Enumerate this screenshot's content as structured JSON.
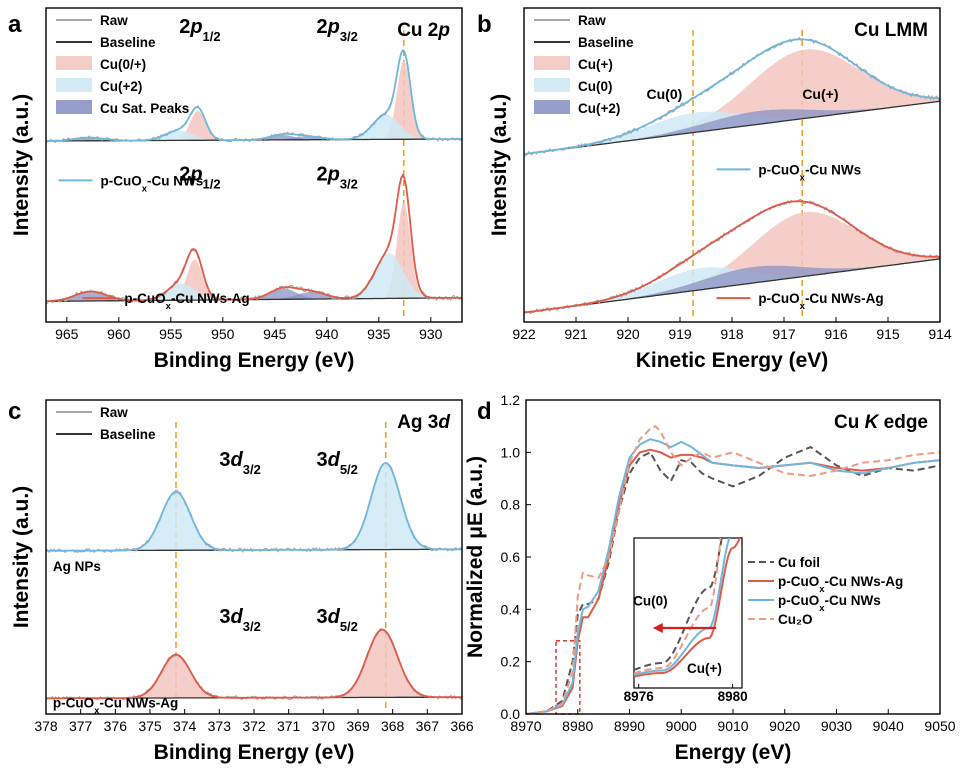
{
  "colors": {
    "raw": "#a8a8a8",
    "baseline": "#333333",
    "fit_blue": "#6fb7dc",
    "fit_red": "#e05a48",
    "cu_0_plus_fill": "#f3c6c0",
    "cu_2_fill": "#cfe9f4",
    "cu_sat_fill": "#8a92c4",
    "guide": "#f0a02a",
    "cu_foil": "#555555",
    "cu2o": "#f09a82",
    "inset_box": "#d63a2e",
    "arrow": "#d62020"
  },
  "chart_data": [
    {
      "id": "a",
      "type": "area",
      "panel_label": "a",
      "title_main": "Cu 2",
      "title_ital": "p",
      "xlabel": "Binding Energy (eV)",
      "ylabel": "Intensity (a.u.)",
      "xlim": [
        967,
        927
      ],
      "xticks": [
        965,
        960,
        955,
        950,
        945,
        940,
        935,
        930
      ],
      "guide_x": [
        932.6
      ],
      "legend": [
        {
          "label": "Raw",
          "kind": "line",
          "color_key": "raw"
        },
        {
          "label": "Baseline",
          "kind": "line",
          "color_key": "baseline"
        },
        {
          "label": "Cu(0/+)",
          "kind": "fill",
          "color_key": "cu_0_plus_fill"
        },
        {
          "label": "Cu(+2)",
          "kind": "fill",
          "color_key": "cu_2_fill"
        },
        {
          "label": "Cu Sat. Peaks",
          "kind": "fill",
          "color_key": "cu_sat_fill"
        }
      ],
      "annotations": [
        {
          "main": "2",
          "ital": "p",
          "sub": "1/2",
          "x": 952.2,
          "y": 0.92
        },
        {
          "main": "2",
          "ital": "p",
          "sub": "3/2",
          "x": 939.0,
          "y": 0.92
        },
        {
          "main": "2",
          "ital": "p",
          "sub": "1/2",
          "x": 952.2,
          "y": 0.45
        },
        {
          "main": "2",
          "ital": "p",
          "sub": "3/2",
          "x": 939.0,
          "y": 0.45
        }
      ],
      "series": [
        {
          "name": "p-CuOx-Cu NWs",
          "name_main": "p-CuO",
          "name_sub": "x",
          "name_tail": "-Cu NWs",
          "offset": 0.575,
          "scale": 0.26,
          "fit_color_key": "fit_blue",
          "baseline": [
            0.005,
            0.03
          ],
          "peaks": [
            {
              "c": 932.6,
              "h": 0.96,
              "w": 0.65,
              "fill_key": "cu_0_plus_fill"
            },
            {
              "c": 934.3,
              "h": 0.3,
              "w": 1.3,
              "fill_key": "cu_2_fill"
            },
            {
              "c": 952.4,
              "h": 0.36,
              "w": 0.75,
              "fill_key": "cu_0_plus_fill"
            },
            {
              "c": 954.2,
              "h": 0.12,
              "w": 1.3,
              "fill_key": "cu_2_fill"
            },
            {
              "c": 942.0,
              "h": 0.04,
              "w": 1.4,
              "fill_key": "cu_sat_fill"
            },
            {
              "c": 944.3,
              "h": 0.06,
              "w": 1.2,
              "fill_key": "cu_sat_fill"
            },
            {
              "c": 962.9,
              "h": 0.04,
              "w": 1.4,
              "fill_key": "cu_sat_fill"
            }
          ],
          "label_pos": [
            965.8,
            0.435
          ]
        },
        {
          "name": "p-CuOx-Cu NWs-Ag",
          "name_main": "p-CuO",
          "name_sub": "x",
          "name_tail": "-Cu NWs-Ag",
          "offset": 0.06,
          "scale": 0.38,
          "fit_color_key": "fit_red",
          "baseline": [
            0.015,
            0.045
          ],
          "peaks": [
            {
              "c": 932.6,
              "h": 0.8,
              "w": 0.65,
              "fill_key": "cu_0_plus_fill"
            },
            {
              "c": 934.0,
              "h": 0.38,
              "w": 1.35,
              "fill_key": "cu_2_fill"
            },
            {
              "c": 952.7,
              "h": 0.34,
              "w": 0.75,
              "fill_key": "cu_0_plus_fill"
            },
            {
              "c": 954.0,
              "h": 0.14,
              "w": 1.3,
              "fill_key": "cu_2_fill"
            },
            {
              "c": 941.5,
              "h": 0.06,
              "w": 1.4,
              "fill_key": "cu_sat_fill"
            },
            {
              "c": 944.2,
              "h": 0.09,
              "w": 1.3,
              "fill_key": "cu_sat_fill"
            },
            {
              "c": 962.7,
              "h": 0.08,
              "w": 1.5,
              "fill_key": "cu_sat_fill"
            }
          ],
          "label_pos": [
            963.5,
            0.06
          ]
        }
      ]
    },
    {
      "id": "b",
      "type": "area",
      "panel_label": "b",
      "title_main": "Cu LMM",
      "title_ital": "",
      "xlabel": "Kinetic Energy (eV)",
      "ylabel": "Intensity (a.u.)",
      "xlim": [
        922,
        914
      ],
      "xticks": [
        922,
        921,
        920,
        919,
        918,
        917,
        916,
        915,
        914
      ],
      "guide_x": [
        918.75,
        916.65
      ],
      "legend": [
        {
          "label": "Raw",
          "kind": "line",
          "color_key": "raw"
        },
        {
          "label": "Baseline",
          "kind": "line",
          "color_key": "baseline"
        },
        {
          "label": "Cu(+)",
          "kind": "fill",
          "color_key": "cu_0_plus_fill"
        },
        {
          "label": "Cu(0)",
          "kind": "fill",
          "color_key": "cu_2_fill"
        },
        {
          "label": "Cu(+2)",
          "kind": "fill",
          "color_key": "cu_sat_fill"
        }
      ],
      "annotations": [
        {
          "main": "Cu(0)",
          "ital": "",
          "sub": "",
          "x": 919.3,
          "y": 0.71,
          "small": true
        },
        {
          "main": "Cu(+)",
          "ital": "",
          "sub": "",
          "x": 916.3,
          "y": 0.71,
          "small": true
        }
      ],
      "series": [
        {
          "name": "p-CuOx-Cu NWs",
          "name_main": "p-CuO",
          "name_sub": "x",
          "name_tail": "-Cu NWs",
          "offset": 0.535,
          "scale": 0.3,
          "fit_color_key": "fit_blue",
          "baseline_lin": [
            922,
            0.0,
            914,
            0.56
          ],
          "peaks": [
            {
              "c": 916.6,
              "h": 0.73,
              "w": 1.05,
              "fill_key": "cu_0_plus_fill"
            },
            {
              "c": 918.7,
              "h": 0.21,
              "w": 0.9,
              "fill_key": "cu_2_fill"
            },
            {
              "c": 917.5,
              "h": 0.14,
              "w": 1.0,
              "fill_key": "cu_sat_fill"
            }
          ],
          "label_pos": [
            918.3,
            0.47
          ]
        },
        {
          "name": "p-CuOx-Cu NWs-Ag",
          "name_main": "p-CuO",
          "name_sub": "x",
          "name_tail": "-Cu NWs-Ag",
          "offset": 0.03,
          "scale": 0.3,
          "fit_color_key": "fit_red",
          "baseline_lin": [
            922,
            0.0,
            914,
            0.57
          ],
          "peaks": [
            {
              "c": 916.6,
              "h": 0.68,
              "w": 1.0,
              "fill_key": "cu_0_plus_fill"
            },
            {
              "c": 918.6,
              "h": 0.23,
              "w": 0.85,
              "fill_key": "cu_2_fill"
            },
            {
              "c": 917.6,
              "h": 0.17,
              "w": 0.95,
              "fill_key": "cu_sat_fill"
            }
          ],
          "label_pos": [
            918.3,
            0.06
          ]
        }
      ]
    },
    {
      "id": "c",
      "type": "area",
      "panel_label": "c",
      "title_main": "Ag 3",
      "title_ital": "d",
      "xlabel": "Binding Energy (eV)",
      "ylabel": "Intensity (a.u.)",
      "xlim": [
        378,
        366
      ],
      "xticks": [
        378,
        377,
        376,
        375,
        374,
        373,
        372,
        371,
        370,
        369,
        368,
        367,
        366
      ],
      "guide_x": [
        374.25,
        368.2
      ],
      "legend": [
        {
          "label": "Raw",
          "kind": "line",
          "color_key": "raw"
        },
        {
          "label": "Baseline",
          "kind": "line",
          "color_key": "baseline"
        }
      ],
      "annotations": [
        {
          "main": "3",
          "ital": "d",
          "sub": "3/2",
          "x": 372.4,
          "y": 0.79
        },
        {
          "main": "3",
          "ital": "d",
          "sub": "5/2",
          "x": 369.6,
          "y": 0.79
        },
        {
          "main": "3",
          "ital": "d",
          "sub": "3/2",
          "x": 372.4,
          "y": 0.29
        },
        {
          "main": "3",
          "ital": "d",
          "sub": "5/2",
          "x": 369.6,
          "y": 0.29
        }
      ],
      "series": [
        {
          "name": "Ag NPs",
          "name_main": "Ag NPs",
          "name_sub": "",
          "name_tail": "",
          "offset": 0.52,
          "scale": 0.3,
          "fit_color_key": "fit_blue",
          "baseline": [
            0.0,
            0.015
          ],
          "peaks": [
            {
              "c": 374.25,
              "h": 0.62,
              "w": 0.42,
              "fill_key": "cu_2_fill"
            },
            {
              "c": 368.2,
              "h": 0.92,
              "w": 0.42,
              "fill_key": "cu_2_fill"
            }
          ],
          "label_pos": [
            377.8,
            0.455
          ]
        },
        {
          "name": "p-CuOx-Cu NWs-Ag",
          "name_main": "p-CuO",
          "name_sub": "x",
          "name_tail": "-Cu NWs-Ag",
          "offset": 0.05,
          "scale": 0.3,
          "fit_color_key": "fit_red",
          "baseline": [
            0.0,
            0.012
          ],
          "peaks": [
            {
              "c": 374.25,
              "h": 0.46,
              "w": 0.42,
              "fill_key": "cu_0_plus_fill"
            },
            {
              "c": 368.3,
              "h": 0.72,
              "w": 0.44,
              "fill_key": "cu_0_plus_fill"
            }
          ],
          "label_pos": [
            377.8,
            0.02
          ]
        }
      ]
    },
    {
      "id": "d",
      "type": "line",
      "panel_label": "d",
      "title_main": "Cu ",
      "title_ital": "K",
      "title_tail": " edge",
      "xlabel": "Energy (eV)",
      "ylabel": "Normalized μE (a.u.)",
      "xlim": [
        8970,
        9050
      ],
      "ylim": [
        0,
        1.2
      ],
      "xticks": [
        8970,
        8980,
        8990,
        9000,
        9010,
        9020,
        9030,
        9040,
        9050
      ],
      "yticks": [
        "0.0",
        "0.2",
        "0.4",
        "0.6",
        "0.8",
        "1.0",
        "1.2"
      ],
      "legend": [
        {
          "label": "Cu foil",
          "label_main": "Cu foil",
          "label_sub": "",
          "label_tail": "",
          "color_key": "cu_foil",
          "dash": "7,4"
        },
        {
          "label": "p-CuOx-Cu NWs-Ag",
          "label_main": "p-CuO",
          "label_sub": "x",
          "label_tail": "-Cu NWs-Ag",
          "color_key": "fit_red",
          "dash": ""
        },
        {
          "label": "p-CuOx-Cu NWs",
          "label_main": "p-CuO",
          "label_sub": "x",
          "label_tail": "-Cu NWs",
          "color_key": "fit_blue",
          "dash": ""
        },
        {
          "label": "Cu₂O",
          "label_main": "Cu₂O",
          "label_sub": "",
          "label_tail": "",
          "color_key": "cu2o",
          "dash": "7,4"
        }
      ],
      "series": [
        {
          "name": "Cu foil",
          "color_key": "cu_foil",
          "dash": "7,4",
          "x": [
            8970,
            8974,
            8977,
            8979,
            8980,
            8981,
            8982,
            8984,
            8986,
            8988,
            8990,
            8992,
            8994,
            8996,
            8998,
            9000,
            9002,
            9004,
            9006,
            9010,
            9015,
            9020,
            9025,
            9030,
            9035,
            9040,
            9045,
            9050
          ],
          "y": [
            0.0,
            0.01,
            0.05,
            0.2,
            0.38,
            0.42,
            0.42,
            0.44,
            0.58,
            0.78,
            0.92,
            0.98,
            1.0,
            0.93,
            0.89,
            0.97,
            0.96,
            0.92,
            0.9,
            0.87,
            0.91,
            0.98,
            1.02,
            0.95,
            0.91,
            0.94,
            0.93,
            0.95
          ]
        },
        {
          "name": "p-CuOx-Cu NWs-Ag",
          "color_key": "fit_red",
          "dash": "",
          "x": [
            8970,
            8974,
            8977,
            8979,
            8980,
            8981,
            8982,
            8984,
            8986,
            8988,
            8990,
            8992,
            8994,
            8996,
            8998,
            9000,
            9002,
            9004,
            9006,
            9010,
            9015,
            9020,
            9025,
            9030,
            9035,
            9040,
            9045,
            9050
          ],
          "y": [
            0.0,
            0.01,
            0.03,
            0.1,
            0.28,
            0.37,
            0.37,
            0.44,
            0.6,
            0.8,
            0.95,
            1.0,
            1.01,
            1.0,
            0.98,
            0.99,
            0.99,
            0.98,
            0.96,
            0.95,
            0.94,
            0.95,
            0.96,
            0.94,
            0.93,
            0.94,
            0.96,
            0.97
          ]
        },
        {
          "name": "p-CuOx-Cu NWs",
          "color_key": "fit_blue",
          "dash": "",
          "x": [
            8970,
            8974,
            8977,
            8979,
            8980,
            8981,
            8982,
            8984,
            8986,
            8988,
            8990,
            8992,
            8994,
            8996,
            8998,
            9000,
            9002,
            9004,
            9006,
            9010,
            9015,
            9020,
            9025,
            9030,
            9035,
            9040,
            9045,
            9050
          ],
          "y": [
            0.0,
            0.01,
            0.035,
            0.12,
            0.31,
            0.4,
            0.41,
            0.47,
            0.63,
            0.83,
            0.98,
            1.03,
            1.05,
            1.04,
            1.02,
            1.04,
            1.02,
            0.99,
            0.96,
            0.95,
            0.94,
            0.95,
            0.96,
            0.93,
            0.92,
            0.94,
            0.96,
            0.97
          ]
        },
        {
          "name": "Cu₂O",
          "color_key": "cu2o",
          "dash": "7,4",
          "x": [
            8970,
            8974,
            8977,
            8979,
            8980,
            8981,
            8982,
            8984,
            8986,
            8988,
            8990,
            8992,
            8994,
            8995,
            8996,
            8998,
            9000,
            9002,
            9004,
            9006,
            9010,
            9015,
            9020,
            9025,
            9030,
            9035,
            9040,
            9045,
            9050
          ],
          "y": [
            0.0,
            0.01,
            0.04,
            0.16,
            0.45,
            0.54,
            0.53,
            0.52,
            0.6,
            0.78,
            0.96,
            1.05,
            1.09,
            1.1,
            1.08,
            1.0,
            0.95,
            0.98,
            1.0,
            0.98,
            1.0,
            0.96,
            0.92,
            0.91,
            0.93,
            0.96,
            0.97,
            0.99,
            1.0
          ]
        }
      ],
      "inset": {
        "xlim": [
          8975.8,
          8980.4
        ],
        "ylim": [
          0.0,
          0.3
        ],
        "xticks": [
          8976,
          8980
        ],
        "labels": [
          {
            "text": "Cu(0)",
            "x": 8976.5,
            "y": 0.165
          },
          {
            "text": "Cu(+)",
            "x": 8978.8,
            "y": 0.03
          }
        ],
        "arrow": {
          "from": 8979.3,
          "to": 8976.6,
          "y": 0.12
        }
      },
      "zoom_box": {
        "x": [
          8975.8,
          8980.4
        ],
        "y": [
          0.0,
          0.28
        ]
      }
    }
  ]
}
